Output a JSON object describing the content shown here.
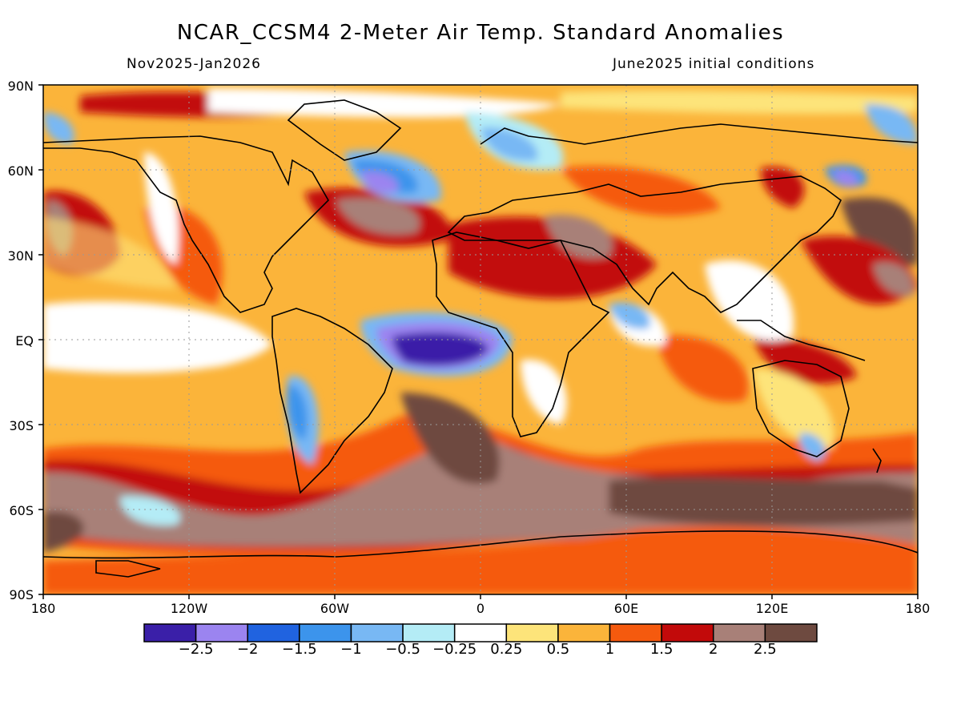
{
  "title": "NCAR_CCSM4 2-Meter Air Temp. Standard Anomalies",
  "subtitle_left": "Nov2025-Jan2026",
  "subtitle_right": "June2025 initial conditions",
  "lat_labels": [
    "90N",
    "60N",
    "30N",
    "EQ",
    "30S",
    "60S",
    "90S"
  ],
  "lon_labels": [
    "180",
    "120W",
    "60W",
    "0",
    "60E",
    "120E",
    "180"
  ],
  "colorbar": {
    "colors": [
      "#3a1fa8",
      "#9b84f0",
      "#2063e0",
      "#3c94ec",
      "#78b8f4",
      "#b4ecf6",
      "#ffffff",
      "#fde47a",
      "#fbb43a",
      "#f55a0e",
      "#c20a0a",
      "#a88078",
      "#6e4a40"
    ],
    "labels": [
      "−2.5",
      "−2",
      "−1.5",
      "−1",
      "−0.5",
      "−0.25",
      "0.25",
      "0.5",
      "1",
      "1.5",
      "2",
      "2.5"
    ]
  }
}
